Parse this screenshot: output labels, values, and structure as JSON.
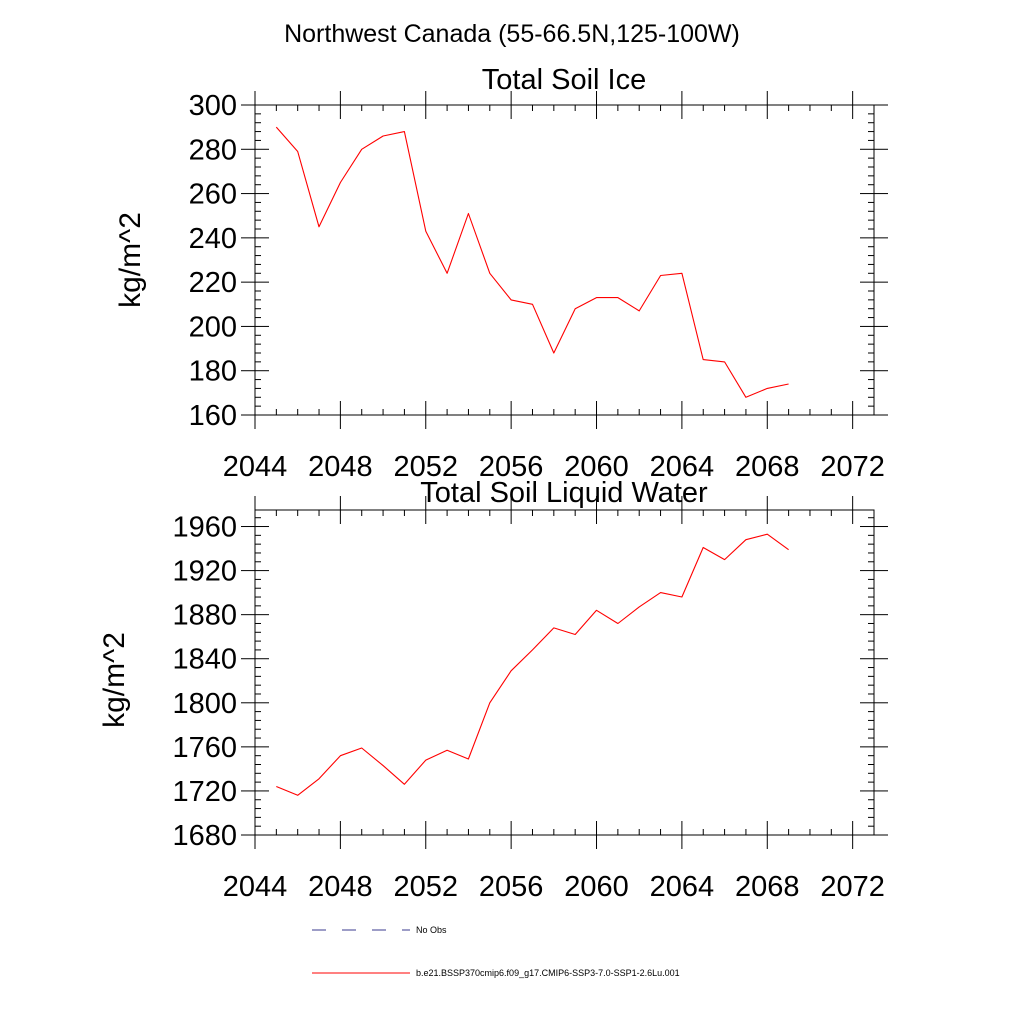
{
  "figure_title": "Northwest Canada (55-66.5N,125-100W)",
  "chart_data": [
    {
      "type": "line",
      "title": "Total Soil Ice",
      "xlabel": "",
      "ylabel": "kg/m^2",
      "xlim": [
        2044,
        2073
      ],
      "ylim": [
        160,
        300
      ],
      "xticks": [
        2044,
        2048,
        2052,
        2056,
        2060,
        2064,
        2068,
        2072
      ],
      "yticks": [
        160,
        180,
        200,
        220,
        240,
        260,
        280,
        300
      ],
      "x": [
        2045,
        2046,
        2047,
        2048,
        2049,
        2050,
        2051,
        2052,
        2053,
        2054,
        2055,
        2056,
        2057,
        2058,
        2059,
        2060,
        2061,
        2062,
        2063,
        2064,
        2065,
        2066,
        2067,
        2068,
        2069
      ],
      "series": [
        {
          "name": "b.e21.BSSP370cmip6.f09_g17.CMIP6-SSP3-7.0-SSP1-2.6Lu.001",
          "color": "#ff0000",
          "values": [
            290,
            279,
            245,
            265,
            280,
            286,
            288,
            243,
            224,
            251,
            224,
            212,
            210,
            188,
            208,
            213,
            213,
            207,
            223,
            224,
            185,
            184,
            168,
            172,
            174
          ]
        }
      ]
    },
    {
      "type": "line",
      "title": "Total Soil Liquid Water",
      "xlabel": "",
      "ylabel": "kg/m^2",
      "xlim": [
        2044,
        2073
      ],
      "ylim": [
        1680,
        1975
      ],
      "xticks": [
        2044,
        2048,
        2052,
        2056,
        2060,
        2064,
        2068,
        2072
      ],
      "yticks": [
        1680,
        1720,
        1760,
        1800,
        1840,
        1880,
        1920,
        1960
      ],
      "x": [
        2045,
        2046,
        2047,
        2048,
        2049,
        2050,
        2051,
        2052,
        2053,
        2054,
        2055,
        2056,
        2057,
        2058,
        2059,
        2060,
        2061,
        2062,
        2063,
        2064,
        2065,
        2066,
        2067,
        2068,
        2069
      ],
      "series": [
        {
          "name": "b.e21.BSSP370cmip6.f09_g17.CMIP6-SSP3-7.0-SSP1-2.6Lu.001",
          "color": "#ff0000",
          "values": [
            1724,
            1716,
            1731,
            1752,
            1759,
            1743,
            1726,
            1748,
            1757,
            1749,
            1800,
            1829,
            1848,
            1868,
            1862,
            1884,
            1872,
            1887,
            1900,
            1896,
            1941,
            1930,
            1948,
            1953,
            1939
          ]
        }
      ]
    }
  ],
  "legend": {
    "placement": "bottom",
    "items": [
      {
        "label": "No Obs",
        "color": "#3b3b8f",
        "style": "dashed"
      },
      {
        "label": "b.e21.BSSP370cmip6.f09_g17.CMIP6-SSP3-7.0-SSP1-2.6Lu.001",
        "color": "#ff0000",
        "style": "solid"
      }
    ]
  }
}
